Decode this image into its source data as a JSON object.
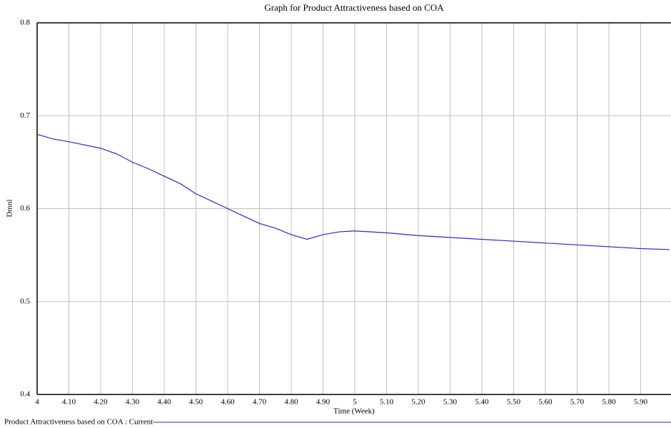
{
  "chart_data": {
    "type": "line",
    "title": "Graph for Product Attractiveness based on COA",
    "x_label": "Time (Week)",
    "y_label": "Dmnl",
    "x": [
      4,
      4.05,
      4.1,
      4.2,
      4.25,
      4.3,
      4.35,
      4.4,
      4.45,
      4.5,
      4.55,
      4.6,
      4.65,
      4.7,
      4.75,
      4.8,
      4.85,
      4.9,
      4.95,
      5,
      5.1,
      5.2,
      5.3,
      5.4,
      5.5,
      5.6,
      5.7,
      5.8,
      5.9,
      5.99
    ],
    "series": [
      {
        "name": "Product Attractiveness based on COA : Current",
        "color": "#2828d8",
        "values": [
          0.68,
          0.675,
          0.672,
          0.665,
          0.659,
          0.65,
          0.643,
          0.635,
          0.627,
          0.616,
          0.608,
          0.6,
          0.592,
          0.584,
          0.579,
          0.572,
          0.567,
          0.572,
          0.575,
          0.576,
          0.574,
          0.571,
          0.569,
          0.567,
          0.565,
          0.563,
          0.561,
          0.559,
          0.557,
          0.556
        ]
      }
    ],
    "xlim": [
      4,
      6
    ],
    "ylim": [
      0.4,
      0.8
    ],
    "xticks": [
      4,
      {
        "value": 4.1,
        "label": "4.10"
      },
      {
        "value": 4.2,
        "label": "4.20"
      },
      {
        "value": 4.3,
        "label": "4.30"
      },
      {
        "value": 4.4,
        "label": "4.40"
      },
      {
        "value": 4.5,
        "label": "4.50"
      },
      {
        "value": 4.6,
        "label": "4.60"
      },
      {
        "value": 4.7,
        "label": "4.70"
      },
      {
        "value": 4.8,
        "label": "4.80"
      },
      {
        "value": 4.9,
        "label": "4.90"
      },
      5,
      {
        "value": 5.1,
        "label": "5.10"
      },
      {
        "value": 5.2,
        "label": "5.20"
      },
      {
        "value": 5.3,
        "label": "5.30"
      },
      {
        "value": 5.4,
        "label": "5.40"
      },
      {
        "value": 5.5,
        "label": "5.50"
      },
      {
        "value": 5.6,
        "label": "5.60"
      },
      {
        "value": 5.7,
        "label": "5.70"
      },
      {
        "value": 5.8,
        "label": "5.80"
      },
      {
        "value": 5.9,
        "label": "5.90"
      }
    ],
    "yticks": [
      0.4,
      0.5,
      0.6,
      0.7,
      0.8
    ],
    "grid": true
  }
}
